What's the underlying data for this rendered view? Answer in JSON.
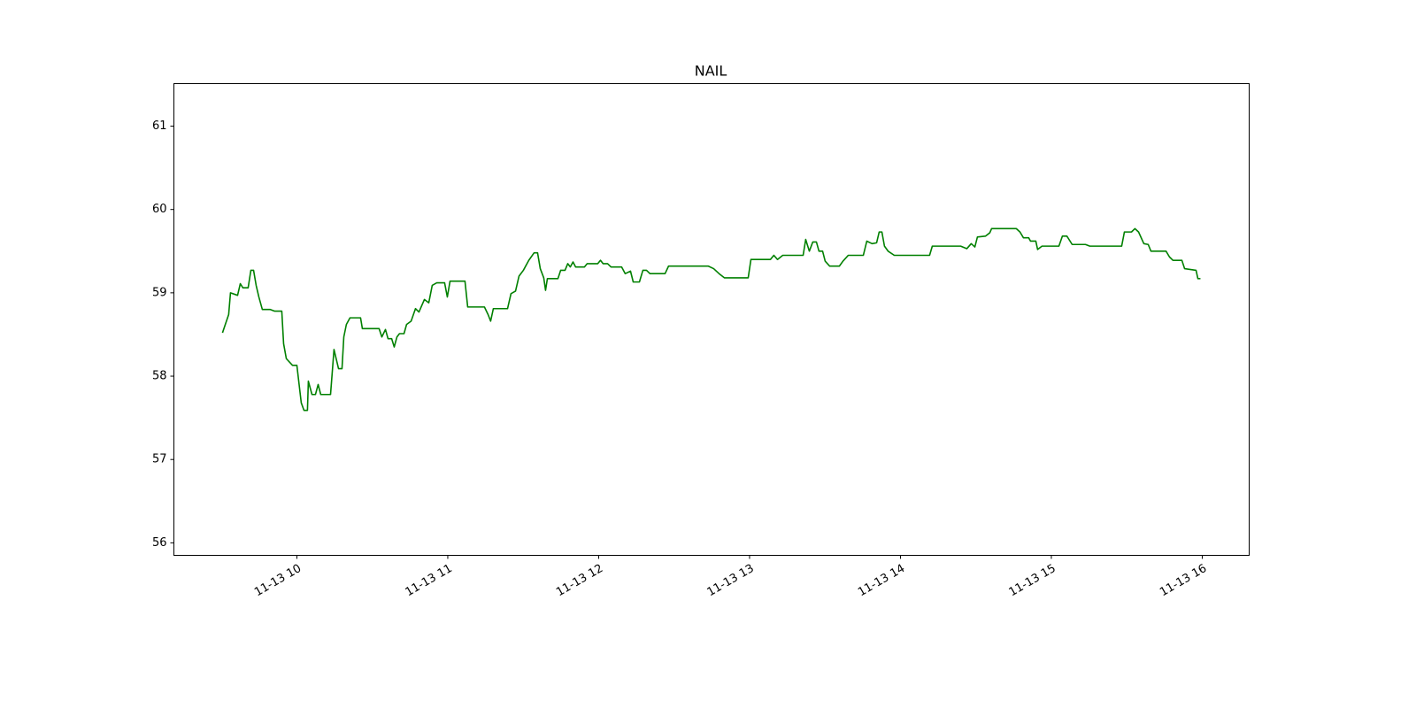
{
  "chart_data": {
    "type": "line",
    "title": "NAIL",
    "x": [
      9.507,
      9.548,
      9.56,
      9.607,
      9.625,
      9.642,
      9.677,
      9.695,
      9.713,
      9.73,
      9.748,
      9.771,
      9.824,
      9.853,
      9.9,
      9.912,
      9.93,
      9.971,
      10.0,
      10.029,
      10.047,
      10.07,
      10.076,
      10.1,
      10.123,
      10.141,
      10.158,
      10.223,
      10.246,
      10.276,
      10.299,
      10.311,
      10.328,
      10.352,
      10.422,
      10.434,
      10.545,
      10.563,
      10.587,
      10.604,
      10.628,
      10.645,
      10.663,
      10.68,
      10.71,
      10.727,
      10.757,
      10.786,
      10.809,
      10.845,
      10.874,
      10.897,
      10.927,
      10.979,
      10.997,
      11.015,
      11.114,
      11.132,
      11.243,
      11.267,
      11.284,
      11.302,
      11.396,
      11.419,
      11.449,
      11.472,
      11.501,
      11.537,
      11.572,
      11.595,
      11.613,
      11.636,
      11.648,
      11.66,
      11.73,
      11.748,
      11.777,
      11.795,
      11.812,
      11.83,
      11.847,
      11.906,
      11.924,
      11.994,
      12.012,
      12.029,
      12.059,
      12.082,
      12.152,
      12.176,
      12.211,
      12.229,
      12.27,
      12.293,
      12.317,
      12.34,
      12.44,
      12.463,
      12.727,
      12.762,
      12.798,
      12.833,
      12.991,
      13.009,
      13.138,
      13.161,
      13.185,
      13.22,
      13.355,
      13.372,
      13.396,
      13.419,
      13.443,
      13.46,
      13.484,
      13.501,
      13.531,
      13.595,
      13.619,
      13.654,
      13.754,
      13.777,
      13.812,
      13.842,
      13.859,
      13.877,
      13.894,
      13.918,
      13.959,
      14.193,
      14.211,
      14.399,
      14.44,
      14.469,
      14.493,
      14.51,
      14.563,
      14.592,
      14.604,
      14.768,
      14.792,
      14.815,
      14.85,
      14.862,
      14.897,
      14.909,
      14.938,
      15.05,
      15.073,
      15.103,
      15.138,
      15.226,
      15.255,
      15.466,
      15.484,
      15.531,
      15.554,
      15.578,
      15.613,
      15.642,
      15.66,
      15.76,
      15.783,
      15.806,
      15.865,
      15.883,
      15.959,
      15.971,
      15.988
    ],
    "series": [
      {
        "name": "NAIL",
        "color": "#008000",
        "values": [
          58.52,
          58.74,
          59.0,
          58.97,
          59.11,
          59.06,
          59.06,
          59.27,
          59.27,
          59.09,
          58.95,
          58.8,
          58.8,
          58.78,
          58.78,
          58.39,
          58.21,
          58.13,
          58.13,
          57.68,
          57.59,
          57.59,
          57.94,
          57.78,
          57.78,
          57.9,
          57.78,
          57.78,
          58.32,
          58.09,
          58.09,
          58.47,
          58.62,
          58.7,
          58.7,
          58.57,
          58.57,
          58.47,
          58.56,
          58.45,
          58.45,
          58.35,
          58.47,
          58.51,
          58.51,
          58.62,
          58.66,
          58.81,
          58.77,
          58.92,
          58.88,
          59.09,
          59.12,
          59.12,
          58.95,
          59.14,
          59.14,
          58.83,
          58.83,
          58.74,
          58.66,
          58.81,
          58.81,
          58.99,
          59.02,
          59.2,
          59.27,
          59.39,
          59.48,
          59.48,
          59.29,
          59.18,
          59.03,
          59.17,
          59.17,
          59.27,
          59.27,
          59.35,
          59.31,
          59.37,
          59.31,
          59.31,
          59.35,
          59.35,
          59.39,
          59.35,
          59.35,
          59.31,
          59.31,
          59.23,
          59.26,
          59.13,
          59.13,
          59.27,
          59.27,
          59.23,
          59.23,
          59.32,
          59.32,
          59.29,
          59.23,
          59.18,
          59.18,
          59.4,
          59.4,
          59.45,
          59.4,
          59.45,
          59.45,
          59.64,
          59.5,
          59.61,
          59.61,
          59.5,
          59.5,
          59.38,
          59.32,
          59.32,
          59.38,
          59.45,
          59.45,
          59.62,
          59.59,
          59.6,
          59.73,
          59.73,
          59.56,
          59.5,
          59.45,
          59.45,
          59.56,
          59.56,
          59.53,
          59.59,
          59.55,
          59.67,
          59.68,
          59.72,
          59.77,
          59.77,
          59.73,
          59.66,
          59.66,
          59.62,
          59.62,
          59.52,
          59.56,
          59.56,
          59.68,
          59.68,
          59.58,
          59.58,
          59.56,
          59.56,
          59.73,
          59.73,
          59.77,
          59.73,
          59.59,
          59.58,
          59.5,
          59.5,
          59.43,
          59.39,
          59.39,
          59.29,
          59.27,
          59.17,
          59.17
        ]
      }
    ],
    "xlim": [
      9.185,
      16.311
    ],
    "xticks": [
      {
        "value": 10,
        "label": "11-13 10"
      },
      {
        "value": 11,
        "label": "11-13 11"
      },
      {
        "value": 12,
        "label": "11-13 12"
      },
      {
        "value": 13,
        "label": "11-13 13"
      },
      {
        "value": 14,
        "label": "11-13 14"
      },
      {
        "value": 15,
        "label": "11-13 15"
      },
      {
        "value": 16,
        "label": "11-13 16"
      }
    ],
    "ylim": [
      55.85,
      61.51
    ],
    "yticks": [
      56,
      57,
      58,
      59,
      60,
      61
    ],
    "grid": false
  }
}
